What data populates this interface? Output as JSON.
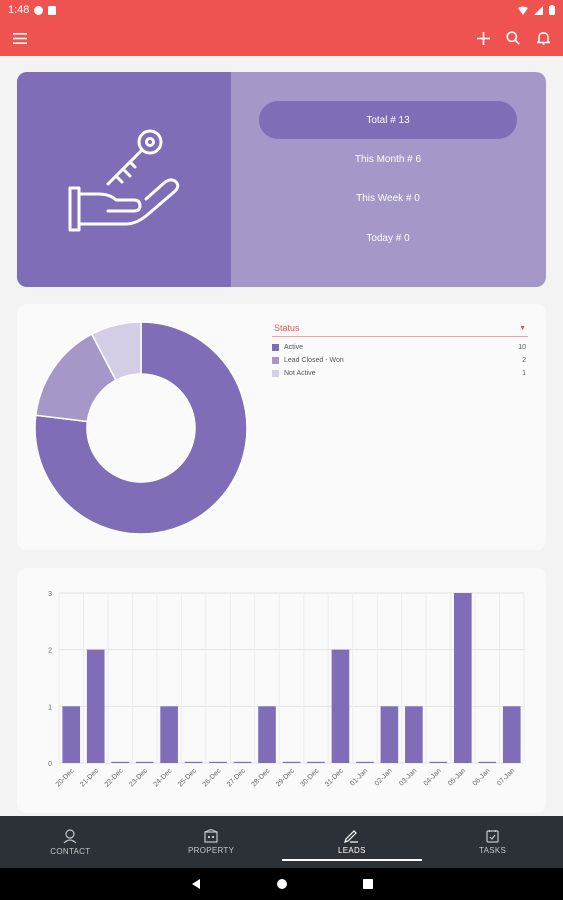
{
  "status_bar": {
    "time": "1:48"
  },
  "summary": {
    "stats": [
      {
        "label": "Total # 13",
        "active": true
      },
      {
        "label": "This Month # 6",
        "active": false
      },
      {
        "label": "This Week # 0",
        "active": false
      },
      {
        "label": "Today # 0",
        "active": false
      }
    ]
  },
  "status_legend": {
    "title": "Status",
    "items": [
      {
        "label": "Active",
        "count": "10",
        "color": "#7f6db7"
      },
      {
        "label": "Lead Closed - Won",
        "count": "2",
        "color": "#a597c8"
      },
      {
        "label": "Not Active",
        "count": "1",
        "color": "#d3cde6"
      }
    ]
  },
  "chart_data": [
    {
      "type": "pie",
      "donut": true,
      "categories": [
        "Active",
        "Lead Closed - Won",
        "Not Active"
      ],
      "values": [
        10,
        2,
        1
      ],
      "colors": [
        "#7f6db7",
        "#a597c8",
        "#d3cde6"
      ]
    },
    {
      "type": "bar",
      "categories": [
        "20-Dec",
        "21-Dec",
        "22-Dec",
        "23-Dec",
        "24-Dec",
        "25-Dec",
        "26-Dec",
        "27-Dec",
        "28-Dec",
        "29-Dec",
        "30-Dec",
        "31-Dec",
        "01-Jan",
        "02-Jan",
        "03-Jan",
        "04-Jan",
        "05-Jan",
        "06-Jan",
        "07-Jan"
      ],
      "values": [
        1,
        2,
        0,
        0,
        1,
        0,
        0,
        0,
        1,
        0,
        0,
        2,
        0,
        1,
        1,
        0,
        3,
        0,
        1
      ],
      "yticks": [
        0,
        1,
        2,
        3
      ],
      "ylim": [
        0,
        3
      ],
      "grid": true,
      "color": "#7f6db7"
    }
  ],
  "bottom_nav": [
    {
      "label": "CONTACT",
      "icon": "contact-icon",
      "active": false
    },
    {
      "label": "PROPERTY",
      "icon": "property-icon",
      "active": false
    },
    {
      "label": "LEADS",
      "icon": "leads-icon",
      "active": true
    },
    {
      "label": "TASKS",
      "icon": "tasks-icon",
      "active": false
    }
  ]
}
